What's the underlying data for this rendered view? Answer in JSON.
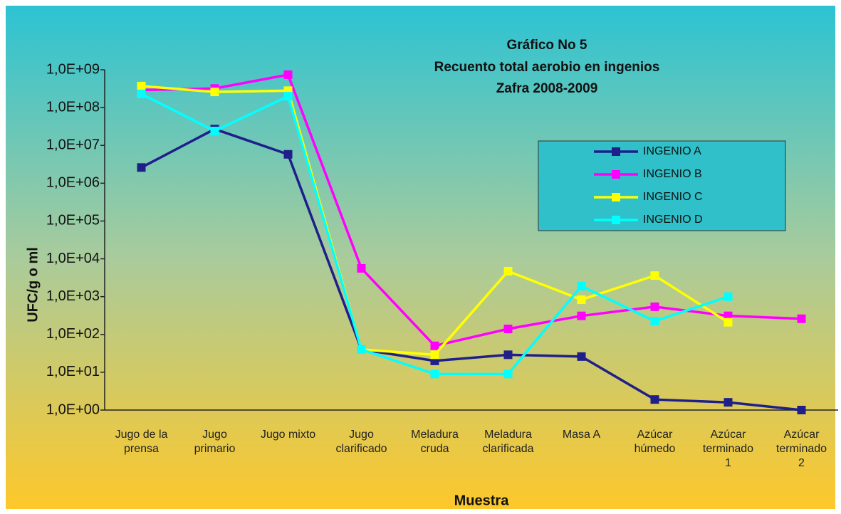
{
  "chart_data": {
    "type": "line",
    "title": [
      "Gráfico No 5",
      "Recuento total aerobio en ingenios",
      "Zafra 2008-2009"
    ],
    "ylabel": "UFC/g o ml",
    "xlabel": "Muestra",
    "categories": [
      "Jugo de la prensa",
      "Jugo primario",
      "Jugo mixto",
      "Jugo clarificado",
      "Meladura cruda",
      "Meladura clarificada",
      "Masa A",
      "Azúcar húmedo",
      "Azúcar terminado 1",
      "Azúcar terminado 2"
    ],
    "series": [
      {
        "name": "INGENIO A",
        "color": "#1f1f8a",
        "values": [
          2600000,
          27000000,
          5800000,
          40,
          20,
          29,
          26,
          1.9,
          1.6,
          1.0
        ]
      },
      {
        "name": "INGENIO B",
        "color": "#ff00ff",
        "values": [
          290000000,
          320000000,
          740000000,
          5600,
          50,
          140,
          310,
          540,
          310,
          260
        ]
      },
      {
        "name": "INGENIO C",
        "color": "#ffff00",
        "values": [
          370000000,
          260000000,
          280000000,
          40,
          29,
          4700,
          830,
          3600,
          210,
          null
        ]
      },
      {
        "name": "INGENIO D",
        "color": "#00ffff",
        "values": [
          230000000,
          24000000,
          200000000,
          40,
          9,
          9,
          1900,
          225,
          1000,
          null
        ]
      }
    ],
    "log_scale": true,
    "ylim": [
      1,
      1000000000
    ],
    "yticks": [
      {
        "value": 1,
        "label": "1,0E+00"
      },
      {
        "value": 10,
        "label": "1,0E+01"
      },
      {
        "value": 100,
        "label": "1,0E+02"
      },
      {
        "value": 1000,
        "label": "1,0E+03"
      },
      {
        "value": 10000,
        "label": "1,0E+04"
      },
      {
        "value": 100000,
        "label": "1,0E+05"
      },
      {
        "value": 1000000,
        "label": "1,0E+06"
      },
      {
        "value": 10000000,
        "label": "1,0E+07"
      },
      {
        "value": 100000000,
        "label": "1,0E+08"
      },
      {
        "value": 1000000000,
        "label": "1,0E+09"
      }
    ],
    "legend": "right",
    "grid": false
  }
}
